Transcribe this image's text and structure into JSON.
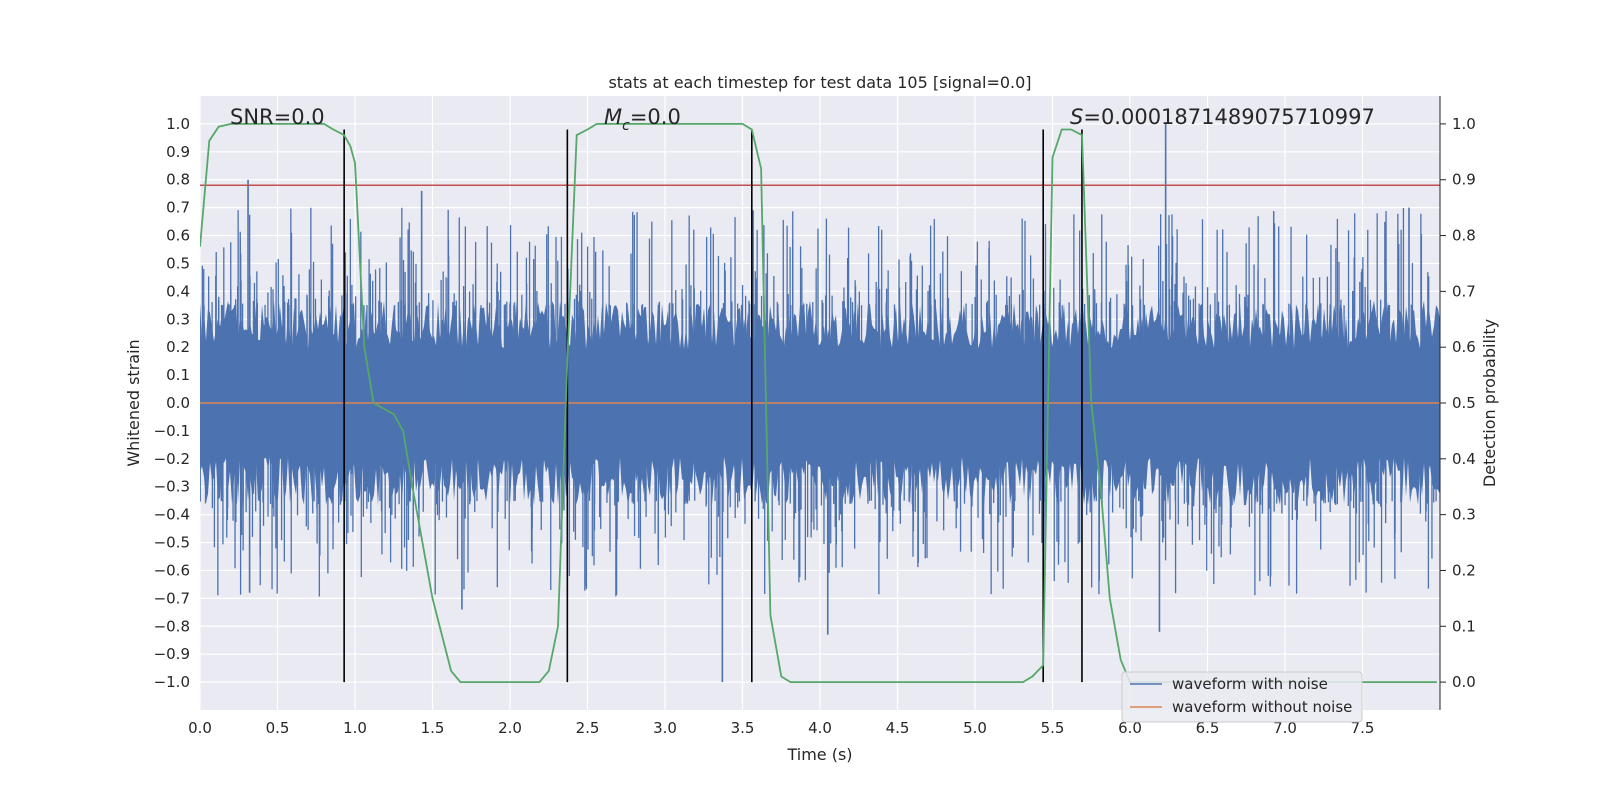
{
  "chart_data": {
    "type": "line",
    "title": "stats at each timestep for test data 105 [signal=0.0]",
    "xlabel": "Time (s)",
    "ylabel": "Whitened strain",
    "ylabel_right": "Detection probability",
    "xlim": [
      0.0,
      8.0
    ],
    "ylim": [
      -1.1,
      1.1
    ],
    "ylim_right": [
      -0.05,
      1.05
    ],
    "x_ticks": [
      "0.0",
      "0.5",
      "1.0",
      "1.5",
      "2.0",
      "2.5",
      "3.0",
      "3.5",
      "4.0",
      "4.5",
      "5.0",
      "5.5",
      "6.0",
      "6.5",
      "7.0",
      "7.5"
    ],
    "y_ticks": [
      "1.0",
      "0.9",
      "0.8",
      "0.7",
      "0.6",
      "0.5",
      "0.4",
      "0.3",
      "0.2",
      "0.1",
      "0.0",
      "−0.1",
      "−0.2",
      "−0.3",
      "−0.4",
      "−0.5",
      "−0.6",
      "−0.7",
      "−0.8",
      "−0.9",
      "−1.0"
    ],
    "y_ticks_right": [
      "1.0",
      "0.9",
      "0.8",
      "0.7",
      "0.6",
      "0.5",
      "0.4",
      "0.3",
      "0.2",
      "0.1",
      "0.0"
    ],
    "grid": true,
    "legend_position": "lower right",
    "legend": [
      {
        "label": "waveform with noise",
        "color": "#4c72b0"
      },
      {
        "label": "waveform without noise",
        "color": "#dd8452"
      }
    ],
    "annotations": {
      "snr": "SNR=0.0",
      "mc_symbol": "M",
      "mc_sub": "c",
      "mc_value": "=0.0",
      "s_symbol": "S",
      "s_value": "=0.0001871489075710997"
    },
    "threshold_line": {
      "y": 0.78,
      "color": "#c44e52"
    },
    "vertical_lines_x": [
      0.93,
      2.37,
      3.56,
      5.44,
      5.69
    ],
    "noise_waveform": {
      "color": "#4c72b0",
      "typical_amplitude": 0.35,
      "peaks": [
        {
          "x": 0.31,
          "y": 0.8
        },
        {
          "x": 1.43,
          "y": 0.76
        },
        {
          "x": 6.23,
          "y": 1.0
        },
        {
          "x": 7.8,
          "y": 0.7
        },
        {
          "x": 3.37,
          "y": -1.0
        },
        {
          "x": 6.19,
          "y": -0.82
        },
        {
          "x": 4.05,
          "y": -0.83
        },
        {
          "x": 0.32,
          "y": -0.68
        },
        {
          "x": 1.69,
          "y": -0.74
        }
      ]
    },
    "clean_waveform": {
      "color": "#dd8452",
      "y": 0.0
    },
    "detection_probability": {
      "color": "#55a868",
      "x": [
        0.0,
        0.06,
        0.12,
        0.2,
        0.5,
        0.8,
        0.86,
        0.93,
        0.97,
        1.0,
        1.06,
        1.12,
        1.25,
        1.31,
        1.37,
        1.5,
        1.62,
        1.68,
        1.75,
        2.0,
        2.19,
        2.25,
        2.31,
        2.37,
        2.43,
        2.5,
        2.56,
        2.75,
        3.0,
        3.25,
        3.5,
        3.56,
        3.62,
        3.68,
        3.75,
        3.81,
        4.0,
        4.5,
        5.0,
        5.31,
        5.37,
        5.44,
        5.5,
        5.56,
        5.62,
        5.69,
        5.75,
        5.81,
        5.87,
        5.94,
        6.0,
        6.5,
        7.0,
        7.5,
        7.98
      ],
      "y": [
        0.78,
        0.97,
        0.995,
        1.0,
        1.0,
        1.0,
        0.99,
        0.98,
        0.96,
        0.93,
        0.6,
        0.5,
        0.48,
        0.45,
        0.35,
        0.15,
        0.02,
        0.0,
        0.0,
        0.0,
        0.0,
        0.02,
        0.1,
        0.58,
        0.98,
        0.99,
        1.0,
        1.0,
        1.0,
        1.0,
        1.0,
        0.99,
        0.92,
        0.12,
        0.01,
        0.0,
        0.0,
        0.0,
        0.0,
        0.0,
        0.01,
        0.03,
        0.94,
        0.99,
        0.99,
        0.98,
        0.5,
        0.35,
        0.15,
        0.04,
        0.0,
        0.0,
        0.0,
        0.0,
        0.0
      ]
    }
  }
}
